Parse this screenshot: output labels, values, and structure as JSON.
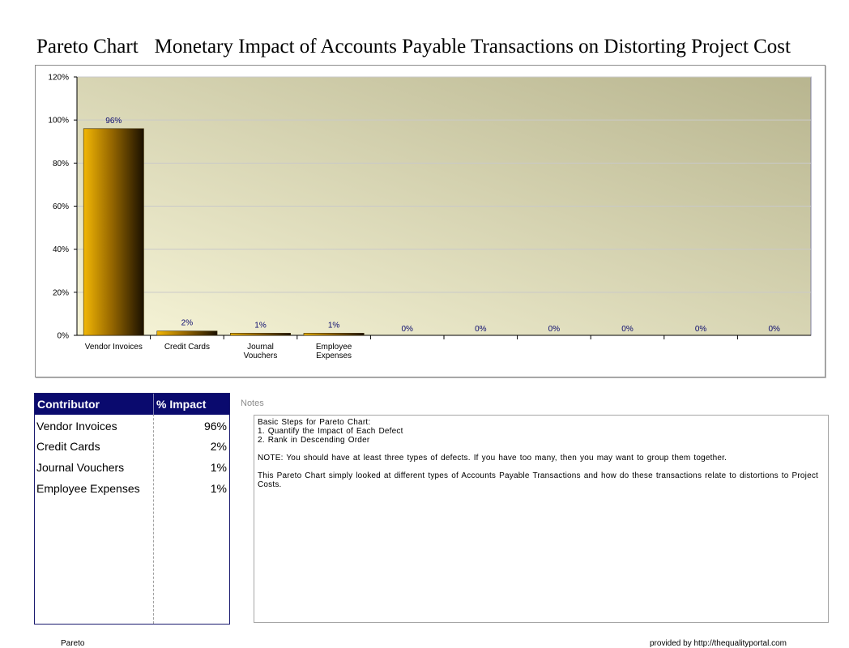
{
  "title": {
    "prefix": "Pareto Chart",
    "main": "Monetary Impact of Accounts Payable Transactions on Distorting Project Cost"
  },
  "chart_data": {
    "type": "bar",
    "categories": [
      [
        "Vendor Invoices"
      ],
      [
        "Credit Cards"
      ],
      [
        "Journal",
        "Vouchers"
      ],
      [
        "Employee",
        "Expenses"
      ],
      [
        ""
      ],
      [
        ""
      ],
      [
        ""
      ],
      [
        ""
      ],
      [
        ""
      ],
      [
        ""
      ]
    ],
    "values": [
      96,
      2,
      1,
      1,
      0,
      0,
      0,
      0,
      0,
      0
    ],
    "data_labels": [
      "96%",
      "2%",
      "1%",
      "1%",
      "0%",
      "0%",
      "0%",
      "0%",
      "0%",
      "0%"
    ],
    "ylim": [
      0,
      120
    ],
    "yticks": [
      0,
      20,
      40,
      60,
      80,
      100,
      120
    ],
    "ytick_labels": [
      "0%",
      "20%",
      "40%",
      "60%",
      "80%",
      "100%",
      "120%"
    ],
    "grid": true,
    "colors": {
      "bar_light": "#f2b705",
      "bar_dark": "#1a1000",
      "plot_light": "#f7f5d8",
      "plot_dark": "#b8b58f",
      "gridline": "#c9c9c9",
      "label": "#0a0a6e"
    }
  },
  "table": {
    "headers": {
      "contributor": "Contributor",
      "impact": "% Impact"
    },
    "rows": [
      {
        "contributor": "Vendor Invoices",
        "impact": "96%"
      },
      {
        "contributor": "Credit Cards",
        "impact": "2%"
      },
      {
        "contributor": "Journal Vouchers",
        "impact": "1%"
      },
      {
        "contributor": "Employee Expenses",
        "impact": "1%"
      }
    ],
    "colors": {
      "header_bg": "#0a0a6e",
      "header_text": "#ffffff"
    }
  },
  "notes": {
    "label": "Notes",
    "line1": "Basic Steps for Pareto Chart:",
    "line2": "1. Quantify the Impact of Each Defect",
    "line3": "2. Rank in Descending Order",
    "line4": "NOTE: You should have at least three types of defects. If you have too many, then you may want to group them together.",
    "line5": "This Pareto Chart simply looked at different types of Accounts Payable Transactions and how do these transactions relate to distortions to Project Costs."
  },
  "footer": {
    "left": "Pareto",
    "right": "provided by http://thequalityportal.com"
  }
}
